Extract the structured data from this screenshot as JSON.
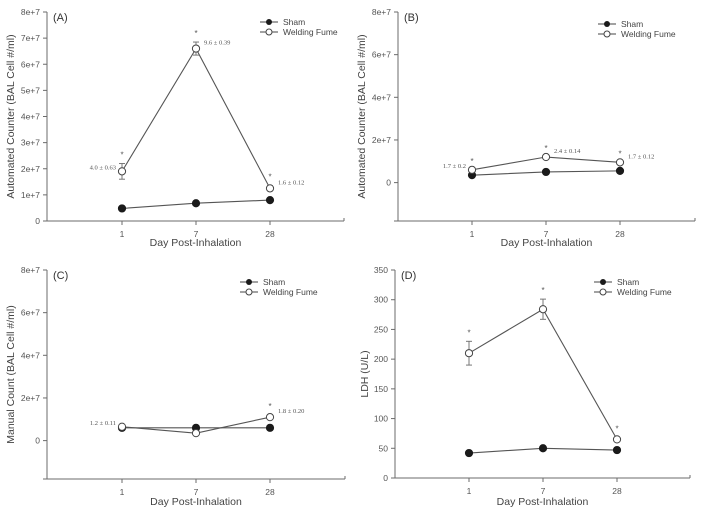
{
  "chart_data": [
    {
      "type": "line",
      "panel_label": "(A)",
      "xlabel": "Day Post-Inhalation",
      "ylabel": "Automated Counter (BAL Cell #/ml)",
      "categories": [
        "1",
        "7",
        "28"
      ],
      "ylim": [
        0,
        80000000
      ],
      "yticks": [
        0,
        10000000,
        20000000,
        30000000,
        40000000,
        50000000,
        60000000,
        70000000,
        80000000
      ],
      "ytick_labels": [
        "0",
        "1e+7",
        "2e+7",
        "3e+7",
        "4e+7",
        "5e+7",
        "6e+7",
        "7e+7",
        "8e+7"
      ],
      "legend": {
        "placement": "top-right",
        "entries": [
          "Sham",
          "Welding Fume"
        ]
      },
      "grid": false,
      "series": [
        {
          "name": "Sham",
          "marker": "filled-circle",
          "values": [
            4800000,
            6800000,
            8000000
          ],
          "errors": [
            0,
            0,
            0
          ]
        },
        {
          "name": "Welding Fume",
          "marker": "open-circle",
          "values": [
            19000000,
            66000000,
            12500000
          ],
          "errors": [
            3000000,
            2500000,
            1000000
          ]
        }
      ],
      "significance": [
        true,
        true,
        true
      ],
      "annotations": [
        "4.0 ± 0.63",
        "9.6 ± 0.39",
        "1.6 ± 0.12"
      ],
      "annotation_sides": [
        "left",
        "right",
        "right"
      ]
    },
    {
      "type": "line",
      "panel_label": "(B)",
      "xlabel": "Day Post-Inhalation",
      "ylabel": "Automated Counter (BAL Cell #/ml)",
      "categories": [
        "1",
        "7",
        "28"
      ],
      "ylim": [
        -18000000,
        80000000
      ],
      "yticks": [
        0,
        20000000,
        40000000,
        60000000,
        80000000
      ],
      "ytick_labels": [
        "0",
        "2e+7",
        "4e+7",
        "6e+7",
        "8e+7"
      ],
      "legend": {
        "placement": "top-right",
        "entries": [
          "Sham",
          "Welding Fume"
        ]
      },
      "grid": false,
      "series": [
        {
          "name": "Sham",
          "marker": "filled-circle",
          "values": [
            3500000,
            5000000,
            5500000
          ],
          "errors": [
            0,
            0,
            0
          ]
        },
        {
          "name": "Welding Fume",
          "marker": "open-circle",
          "values": [
            6000000,
            12000000,
            9500000
          ],
          "errors": [
            0,
            0,
            0
          ]
        }
      ],
      "significance": [
        true,
        true,
        true
      ],
      "annotations": [
        "1.7 ± 0.2",
        "2.4 ± 0.14",
        "1.7 ± 0.12"
      ],
      "annotation_sides": [
        "left",
        "right",
        "right"
      ]
    },
    {
      "type": "line",
      "panel_label": "(C)",
      "xlabel": "Day Post-Inhalation",
      "ylabel": "Manual Count (BAL Cell #/ml)",
      "categories": [
        "1",
        "7",
        "28"
      ],
      "ylim": [
        -18000000,
        80000000
      ],
      "yticks": [
        0,
        20000000,
        40000000,
        60000000,
        80000000
      ],
      "ytick_labels": [
        "0",
        "2e+7",
        "4e+7",
        "6e+7",
        "8e+7"
      ],
      "legend": {
        "placement": "top-right",
        "entries": [
          "Sham",
          "Welding Fume"
        ]
      },
      "grid": false,
      "series": [
        {
          "name": "Sham",
          "marker": "filled-circle",
          "values": [
            6000000,
            6000000,
            6000000
          ],
          "errors": [
            0,
            0,
            0
          ]
        },
        {
          "name": "Welding Fume",
          "marker": "open-circle",
          "values": [
            6500000,
            3500000,
            11000000
          ],
          "errors": [
            0,
            0,
            1000000
          ]
        }
      ],
      "significance": [
        false,
        false,
        true
      ],
      "annotations": [
        "1.2 ± 0.11",
        "",
        "1.8 ± 0.20"
      ],
      "annotation_sides": [
        "left",
        "right",
        "right"
      ]
    },
    {
      "type": "line",
      "panel_label": "(D)",
      "xlabel": "Day Post-Inhalation",
      "ylabel": "LDH (U/L)",
      "categories": [
        "1",
        "7",
        "28"
      ],
      "ylim": [
        0,
        350
      ],
      "yticks": [
        0,
        50,
        100,
        150,
        200,
        250,
        300,
        350
      ],
      "ytick_labels": [
        "0",
        "50",
        "100",
        "150",
        "200",
        "250",
        "300",
        "350"
      ],
      "legend": {
        "placement": "top-right",
        "entries": [
          "Sham",
          "Welding Fume"
        ]
      },
      "grid": false,
      "series": [
        {
          "name": "Sham",
          "marker": "filled-circle",
          "values": [
            42,
            50,
            47
          ],
          "errors": [
            0,
            0,
            4
          ]
        },
        {
          "name": "Welding Fume",
          "marker": "open-circle",
          "values": [
            210,
            284,
            65
          ],
          "errors": [
            20,
            17,
            3
          ]
        }
      ],
      "significance": [
        true,
        true,
        true
      ],
      "annotations": [
        "",
        "",
        ""
      ],
      "annotation_sides": [
        "left",
        "right",
        "right"
      ]
    }
  ]
}
